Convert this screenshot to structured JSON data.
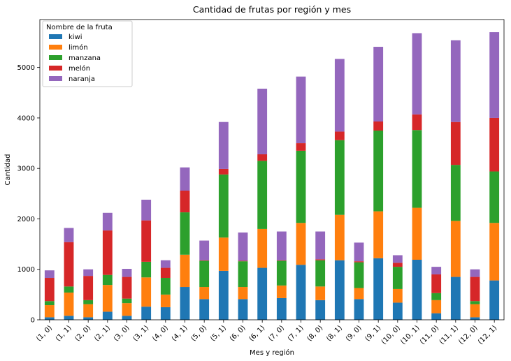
{
  "chart_data": {
    "type": "bar",
    "stacked": true,
    "title": "Cantidad de frutas por región y mes",
    "xlabel": "Mes y región",
    "ylabel": "Cantidad",
    "ylim": [
      0,
      5950
    ],
    "yticks": [
      0,
      1000,
      2000,
      3000,
      4000,
      5000
    ],
    "legend_title": "Nombre de la fruta",
    "legend_position": "top-left",
    "grid": false,
    "categories": [
      "(1, 0)",
      "(1, 1)",
      "(2, 0)",
      "(2, 1)",
      "(3, 0)",
      "(3, 1)",
      "(4, 0)",
      "(4, 1)",
      "(5, 0)",
      "(5, 1)",
      "(6, 0)",
      "(6, 1)",
      "(7, 0)",
      "(7, 1)",
      "(8, 0)",
      "(8, 1)",
      "(9, 0)",
      "(9, 1)",
      "(10, 0)",
      "(10, 1)",
      "(11, 0)",
      "(11, 1)",
      "(12, 0)",
      "(12, 1)"
    ],
    "series": [
      {
        "name": "kiwi",
        "color": "#1f77b4",
        "values": [
          50,
          80,
          50,
          160,
          80,
          260,
          250,
          650,
          410,
          970,
          410,
          1030,
          430,
          1090,
          390,
          1180,
          410,
          1220,
          340,
          1190,
          130,
          850,
          50,
          780
        ]
      },
      {
        "name": "limón",
        "color": "#ff7f0e",
        "values": [
          240,
          460,
          260,
          530,
          250,
          580,
          250,
          640,
          240,
          660,
          240,
          770,
          250,
          830,
          270,
          900,
          220,
          930,
          270,
          1030,
          260,
          1110,
          260,
          1140
        ]
      },
      {
        "name": "manzana",
        "color": "#2ca02c",
        "values": [
          80,
          120,
          80,
          200,
          90,
          310,
          330,
          840,
          520,
          1250,
          510,
          1350,
          490,
          1430,
          520,
          1480,
          510,
          1600,
          440,
          1540,
          140,
          1110,
          60,
          1020
        ]
      },
      {
        "name": "melón",
        "color": "#d62728",
        "values": [
          460,
          880,
          480,
          880,
          430,
          820,
          200,
          430,
          10,
          110,
          10,
          130,
          10,
          150,
          20,
          170,
          20,
          180,
          80,
          310,
          370,
          850,
          480,
          1060
        ]
      },
      {
        "name": "naranja",
        "color": "#9467bd",
        "values": [
          150,
          280,
          130,
          350,
          160,
          410,
          150,
          460,
          390,
          930,
          560,
          1300,
          570,
          1320,
          550,
          1440,
          370,
          1480,
          150,
          1610,
          150,
          1620,
          150,
          1700
        ]
      }
    ]
  }
}
